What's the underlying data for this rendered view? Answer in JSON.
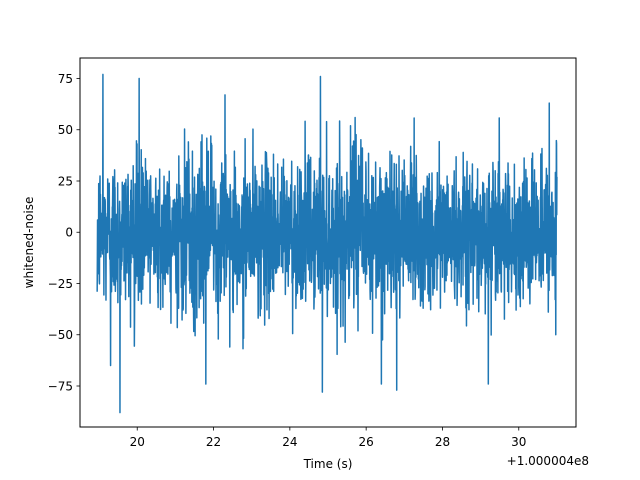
{
  "chart_data": {
    "type": "line",
    "title": "",
    "xlabel": "Time (s)",
    "ylabel": "whitened-noise",
    "x_offset_label": "+1.000004e8",
    "xlim": [
      18.5,
      31.5
    ],
    "ylim": [
      -95,
      85
    ],
    "x_ticks": [
      20,
      22,
      24,
      26,
      28,
      30
    ],
    "x_tick_labels": [
      "20",
      "22",
      "24",
      "26",
      "28",
      "30"
    ],
    "y_ticks": [
      -75,
      -50,
      -25,
      0,
      25,
      50,
      75
    ],
    "y_tick_labels": [
      "−75",
      "−50",
      "−25",
      "0",
      "25",
      "50",
      "75"
    ],
    "grid": false,
    "series": [
      {
        "color": "#1f77b4",
        "x_range": [
          18.95,
          31.0
        ],
        "sample_count": 2400,
        "std": 18,
        "extremes": [
          {
            "x": 19.1,
            "y": 77
          },
          {
            "x": 19.55,
            "y": -88
          },
          {
            "x": 19.3,
            "y": -65
          },
          {
            "x": 20.05,
            "y": 75
          },
          {
            "x": 24.8,
            "y": 76
          },
          {
            "x": 24.85,
            "y": -78
          },
          {
            "x": 26.4,
            "y": -74
          },
          {
            "x": 26.8,
            "y": -77
          },
          {
            "x": 29.2,
            "y": -74
          },
          {
            "x": 30.8,
            "y": 63
          },
          {
            "x": 22.3,
            "y": 67
          },
          {
            "x": 21.8,
            "y": -74
          }
        ]
      }
    ]
  }
}
